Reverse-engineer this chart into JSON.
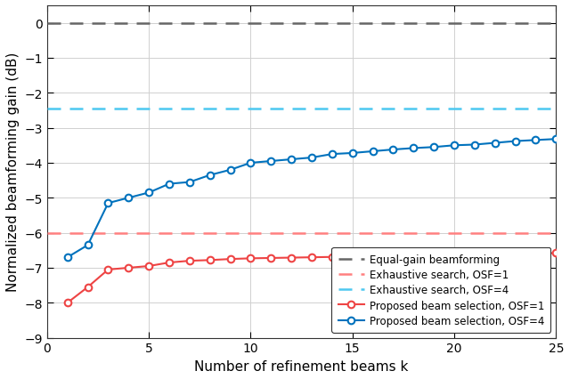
{
  "title": "",
  "xlabel": "Number of refinement beams k",
  "ylabel": "Normalized beamforming gain (dB)",
  "xlim": [
    0,
    25
  ],
  "ylim": [
    -9,
    0.5
  ],
  "yticks": [
    0,
    -1,
    -2,
    -3,
    -4,
    -5,
    -6,
    -7,
    -8,
    -9
  ],
  "xticks": [
    0,
    5,
    10,
    15,
    20,
    25
  ],
  "hline_equal_gain": 0.0,
  "hline_exhaustive_osf1": -6.02,
  "hline_exhaustive_osf4": -2.45,
  "hline_equal_gain_color": "#666666",
  "hline_exhaustive_osf1_color": "#FF8080",
  "hline_exhaustive_osf4_color": "#4DC8F0",
  "osf4_x": [
    1,
    2,
    3,
    4,
    5,
    6,
    7,
    8,
    9,
    10,
    11,
    12,
    13,
    14,
    15,
    16,
    17,
    18,
    19,
    20,
    21,
    22,
    23,
    24,
    25
  ],
  "osf4_y": [
    -6.7,
    -6.35,
    -5.15,
    -5.0,
    -4.85,
    -4.6,
    -4.55,
    -4.35,
    -4.2,
    -4.0,
    -3.95,
    -3.9,
    -3.85,
    -3.75,
    -3.72,
    -3.67,
    -3.62,
    -3.58,
    -3.55,
    -3.5,
    -3.48,
    -3.43,
    -3.38,
    -3.35,
    -3.32
  ],
  "osf1_x": [
    1,
    2,
    3,
    4,
    5,
    6,
    7,
    8,
    9,
    10,
    11,
    12,
    13,
    14,
    15,
    16,
    17,
    18,
    19,
    20,
    21,
    22,
    23,
    24,
    25
  ],
  "osf1_y": [
    -8.0,
    -7.55,
    -7.05,
    -7.0,
    -6.95,
    -6.85,
    -6.8,
    -6.78,
    -6.75,
    -6.73,
    -6.72,
    -6.71,
    -6.7,
    -6.69,
    -6.68,
    -6.67,
    -6.66,
    -6.65,
    -6.64,
    -6.63,
    -6.62,
    -6.61,
    -6.6,
    -6.59,
    -6.58
  ],
  "osf4_color": "#0072BD",
  "osf1_color": "#EE4444",
  "background_color": "#FFFFFF",
  "grid_color": "#D0D0D0",
  "legend_labels": [
    "Equal-gain beamforming",
    "Exhaustive search, OSF=1",
    "Exhaustive search, OSF=4",
    "Proposed beam selection, OSF=1",
    "Proposed beam selection, OSF=4"
  ],
  "fig_width": 6.4,
  "fig_height": 4.27,
  "dpi": 100
}
